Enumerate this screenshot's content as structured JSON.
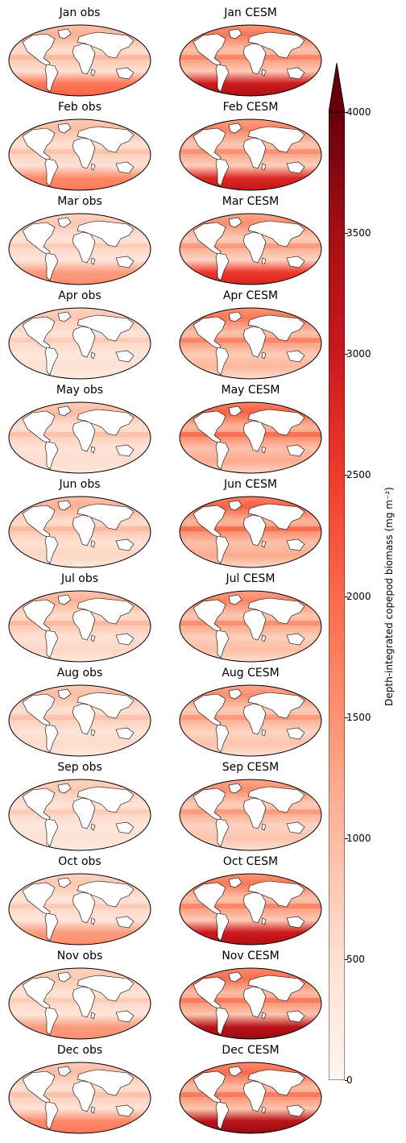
{
  "panels": [
    {
      "month": "Jan",
      "obs": "Jan obs",
      "cesm": "Jan CESM",
      "obs_level": 0.4,
      "cesm_level": 0.65,
      "south_band": true
    },
    {
      "month": "Feb",
      "obs": "Feb obs",
      "cesm": "Feb CESM",
      "obs_level": 0.35,
      "cesm_level": 0.6,
      "south_band": true
    },
    {
      "month": "Mar",
      "obs": "Mar obs",
      "cesm": "Mar CESM",
      "obs_level": 0.3,
      "cesm_level": 0.55,
      "south_band": true
    },
    {
      "month": "Apr",
      "obs": "Apr obs",
      "cesm": "Apr CESM",
      "obs_level": 0.3,
      "cesm_level": 0.65,
      "south_band": false
    },
    {
      "month": "May",
      "obs": "May obs",
      "cesm": "May CESM",
      "obs_level": 0.35,
      "cesm_level": 0.75,
      "south_band": false
    },
    {
      "month": "Jun",
      "obs": "Jun obs",
      "cesm": "Jun CESM",
      "obs_level": 0.4,
      "cesm_level": 0.75,
      "south_band": false
    },
    {
      "month": "Jul",
      "obs": "Jul obs",
      "cesm": "Jul CESM",
      "obs_level": 0.4,
      "cesm_level": 0.6,
      "south_band": false
    },
    {
      "month": "Aug",
      "obs": "Aug obs",
      "cesm": "Aug CESM",
      "obs_level": 0.35,
      "cesm_level": 0.55,
      "south_band": false
    },
    {
      "month": "Sep",
      "obs": "Sep obs",
      "cesm": "Sep CESM",
      "obs_level": 0.3,
      "cesm_level": 0.55,
      "south_band": false
    },
    {
      "month": "Oct",
      "obs": "Oct obs",
      "cesm": "Oct CESM",
      "obs_level": 0.3,
      "cesm_level": 0.65,
      "south_band": true
    },
    {
      "month": "Nov",
      "obs": "Nov obs",
      "cesm": "Nov CESM",
      "obs_level": 0.3,
      "cesm_level": 0.7,
      "south_band": true
    },
    {
      "month": "Dec",
      "obs": "Dec obs",
      "cesm": "Dec CESM",
      "obs_level": 0.35,
      "cesm_level": 0.7,
      "south_band": true
    }
  ],
  "colorbar": {
    "label": "Depth-integrated copepod biomass (mg m⁻²)",
    "ticks": [
      "0",
      "500",
      "1000",
      "1500",
      "2000",
      "2500",
      "3000",
      "3500",
      "4000"
    ],
    "range": [
      0,
      4000
    ],
    "extend": "max",
    "colormap": [
      "#fff5f0",
      "#fee0d2",
      "#fcbba1",
      "#fc9272",
      "#fb6a4a",
      "#ef3b2c",
      "#cb181d",
      "#a50f15",
      "#67000d"
    ]
  }
}
